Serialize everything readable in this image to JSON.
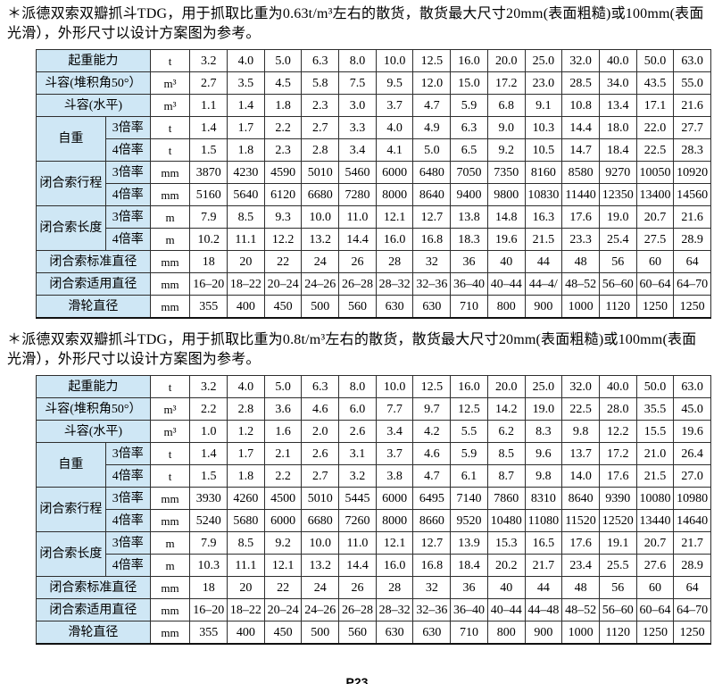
{
  "colors": {
    "label_bg": "#cfe7f5",
    "border": "#2e2e2e"
  },
  "footer": {
    "page_label": "P23"
  },
  "sections": [
    {
      "intro": "＊派德双索双瓣抓斗TDG，用于抓取比重为0.63t/m³左右的散货，散货最大尺寸20mm(表面粗糙)或100mm(表面光滑），外形尺寸以设计方案图为参考。",
      "table": {
        "rows": [
          {
            "label": "起重能力",
            "unit": "t",
            "values": [
              "3.2",
              "4.0",
              "5.0",
              "6.3",
              "8.0",
              "10.0",
              "12.5",
              "16.0",
              "20.0",
              "25.0",
              "32.0",
              "40.0",
              "50.0",
              "63.0"
            ]
          },
          {
            "label": "斗容(堆积角50°）",
            "unit": "m³",
            "values": [
              "2.7",
              "3.5",
              "4.5",
              "5.8",
              "7.5",
              "9.5",
              "12.0",
              "15.0",
              "17.2",
              "23.0",
              "28.5",
              "34.0",
              "43.5",
              "55.0"
            ]
          },
          {
            "label": "斗容(水平)",
            "unit": "m³",
            "values": [
              "1.1",
              "1.4",
              "1.8",
              "2.3",
              "3.0",
              "3.7",
              "4.7",
              "5.9",
              "6.8",
              "9.1",
              "10.8",
              "13.4",
              "17.1",
              "21.6"
            ]
          },
          {
            "group": "自重",
            "sub": "3倍率",
            "unit": "t",
            "values": [
              "1.4",
              "1.7",
              "2.2",
              "2.7",
              "3.3",
              "4.0",
              "4.9",
              "6.3",
              "9.0",
              "10.3",
              "14.4",
              "18.0",
              "22.0",
              "27.7"
            ]
          },
          {
            "sub": "4倍率",
            "unit": "t",
            "values": [
              "1.5",
              "1.8",
              "2.3",
              "2.8",
              "3.4",
              "4.1",
              "5.0",
              "6.5",
              "9.2",
              "10.5",
              "14.7",
              "18.4",
              "22.5",
              "28.3"
            ]
          },
          {
            "group": "闭合索行程",
            "sub": "3倍率",
            "unit": "mm",
            "values": [
              "3870",
              "4230",
              "4590",
              "5010",
              "5460",
              "6000",
              "6480",
              "7050",
              "7350",
              "8160",
              "8580",
              "9270",
              "10050",
              "10920"
            ]
          },
          {
            "sub": "4倍率",
            "unit": "mm",
            "values": [
              "5160",
              "5640",
              "6120",
              "6680",
              "7280",
              "8000",
              "8640",
              "9400",
              "9800",
              "10830",
              "11440",
              "12350",
              "13400",
              "14560"
            ]
          },
          {
            "group": "闭合索长度",
            "sub": "3倍率",
            "unit": "m",
            "values": [
              "7.9",
              "8.5",
              "9.3",
              "10.0",
              "11.0",
              "12.1",
              "12.7",
              "13.8",
              "14.8",
              "16.3",
              "17.6",
              "19.0",
              "20.7",
              "21.6"
            ]
          },
          {
            "sub": "4倍率",
            "unit": "m",
            "values": [
              "10.2",
              "11.1",
              "12.2",
              "13.2",
              "14.4",
              "16.0",
              "16.8",
              "18.3",
              "19.6",
              "21.5",
              "23.3",
              "25.4",
              "27.5",
              "28.9"
            ]
          },
          {
            "label": "闭合索标准直径",
            "unit": "mm",
            "values": [
              "18",
              "20",
              "22",
              "24",
              "26",
              "28",
              "32",
              "36",
              "40",
              "44",
              "48",
              "56",
              "60",
              "64"
            ]
          },
          {
            "label": "闭合索适用直径",
            "unit": "mm",
            "values": [
              "16–20",
              "18–22",
              "20–24",
              "24–26",
              "26–28",
              "28–32",
              "32–36",
              "36–40",
              "40–44",
              "44–4/",
              "48–52",
              "56–60",
              "60–64",
              "64–70"
            ]
          },
          {
            "label": "滑轮直径",
            "unit": "mm",
            "values": [
              "355",
              "400",
              "450",
              "500",
              "560",
              "630",
              "630",
              "710",
              "800",
              "900",
              "1000",
              "1120",
              "1250",
              "1250"
            ]
          }
        ]
      }
    },
    {
      "intro": "＊派德双索双瓣抓斗TDG，用于抓取比重为0.8t/m³左右的散货，散货最大尺寸20mm(表面粗糙)或100mm(表面光滑），外形尺寸以设计方案图为参考。",
      "table": {
        "rows": [
          {
            "label": "起重能力",
            "unit": "t",
            "values": [
              "3.2",
              "4.0",
              "5.0",
              "6.3",
              "8.0",
              "10.0",
              "12.5",
              "16.0",
              "20.0",
              "25.0",
              "32.0",
              "40.0",
              "50.0",
              "63.0"
            ]
          },
          {
            "label": "斗容(堆积角50°）",
            "unit": "m³",
            "values": [
              "2.2",
              "2.8",
              "3.6",
              "4.6",
              "6.0",
              "7.7",
              "9.7",
              "12.5",
              "14.2",
              "19.0",
              "22.5",
              "28.0",
              "35.5",
              "45.0"
            ]
          },
          {
            "label": "斗容(水平)",
            "unit": "m³",
            "values": [
              "1.0",
              "1.2",
              "1.6",
              "2.0",
              "2.6",
              "3.4",
              "4.2",
              "5.5",
              "6.2",
              "8.3",
              "9.8",
              "12.2",
              "15.5",
              "19.6"
            ]
          },
          {
            "group": "自重",
            "sub": "3倍率",
            "unit": "t",
            "values": [
              "1.4",
              "1.7",
              "2.1",
              "2.6",
              "3.1",
              "3.7",
              "4.6",
              "5.9",
              "8.5",
              "9.6",
              "13.7",
              "17.2",
              "21.0",
              "26.4"
            ]
          },
          {
            "sub": "4倍率",
            "unit": "t",
            "values": [
              "1.5",
              "1.8",
              "2.2",
              "2.7",
              "3.2",
              "3.8",
              "4.7",
              "6.1",
              "8.7",
              "9.8",
              "14.0",
              "17.6",
              "21.5",
              "27.0"
            ]
          },
          {
            "group": "闭合索行程",
            "sub": "3倍率",
            "unit": "mm",
            "values": [
              "3930",
              "4260",
              "4500",
              "5010",
              "5445",
              "6000",
              "6495",
              "7140",
              "7860",
              "8310",
              "8640",
              "9390",
              "10080",
              "10980"
            ]
          },
          {
            "sub": "4倍率",
            "unit": "mm",
            "values": [
              "5240",
              "5680",
              "6000",
              "6680",
              "7260",
              "8000",
              "8660",
              "9520",
              "10480",
              "11080",
              "11520",
              "12520",
              "13440",
              "14640"
            ]
          },
          {
            "group": "闭合索长度",
            "sub": "3倍率",
            "unit": "m",
            "values": [
              "7.9",
              "8.5",
              "9.2",
              "10.0",
              "11.0",
              "12.1",
              "12.7",
              "13.9",
              "15.3",
              "16.5",
              "17.6",
              "19.1",
              "20.7",
              "21.7"
            ]
          },
          {
            "sub": "4倍率",
            "unit": "m",
            "values": [
              "10.3",
              "11.1",
              "12.1",
              "13.2",
              "14.4",
              "16.0",
              "16.8",
              "18.4",
              "20.2",
              "21.7",
              "23.4",
              "25.5",
              "27.6",
              "28.9"
            ]
          },
          {
            "label": "闭合索标准直径",
            "unit": "mm",
            "values": [
              "18",
              "20",
              "22",
              "24",
              "26",
              "28",
              "32",
              "36",
              "40",
              "44",
              "48",
              "56",
              "60",
              "64"
            ]
          },
          {
            "label": "闭合索适用直径",
            "unit": "mm",
            "values": [
              "16–20",
              "18–22",
              "20–24",
              "24–26",
              "26–28",
              "28–32",
              "32–36",
              "36–40",
              "40–44",
              "44–48",
              "48–52",
              "56–60",
              "60–64",
              "64–70"
            ]
          },
          {
            "label": "滑轮直径",
            "unit": "mm",
            "values": [
              "355",
              "400",
              "450",
              "500",
              "560",
              "630",
              "630",
              "710",
              "800",
              "900",
              "1000",
              "1120",
              "1250",
              "1250"
            ]
          }
        ]
      }
    }
  ]
}
